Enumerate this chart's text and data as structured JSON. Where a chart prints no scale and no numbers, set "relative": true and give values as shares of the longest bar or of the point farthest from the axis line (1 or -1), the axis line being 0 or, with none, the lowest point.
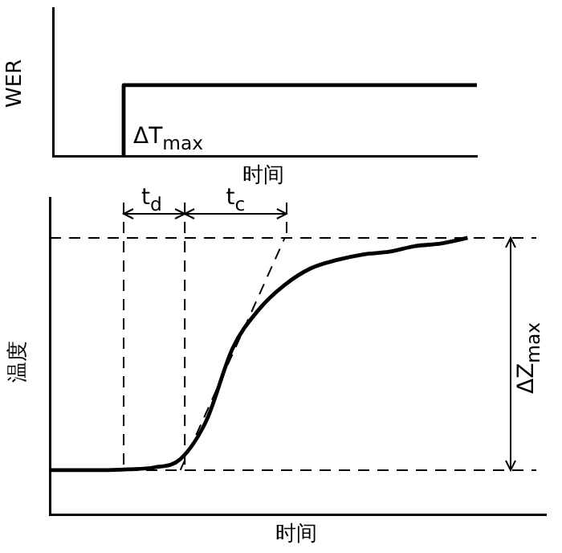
{
  "chart_data": [
    {
      "type": "step",
      "ylabel": "WER",
      "xlabel": "时间",
      "categories": [
        null,
        null,
        null,
        null,
        null,
        null,
        null,
        null,
        null,
        null,
        null,
        null,
        null
      ],
      "relative": true,
      "marker": "none",
      "series": [
        {
          "color": "#000000",
          "values": [
            null,
            null,
            0,
            1,
            1,
            1,
            1,
            1,
            1,
            1,
            1,
            1,
            1
          ]
        }
      ],
      "annotations": [
        "ΔT$_{max}$"
      ]
    },
    {
      "type": "line",
      "ylabel": "温度",
      "xlabel": "时间",
      "categories": [
        null,
        null,
        null,
        null,
        null,
        null,
        null,
        null,
        null,
        null,
        null,
        null,
        null,
        null,
        null,
        null,
        null,
        null,
        null,
        null
      ],
      "relative": true,
      "marker": "none",
      "series": [
        {
          "color": "#000000",
          "values": [
            0.16,
            0.16,
            0.16,
            0.163,
            0.17,
            0.2,
            0.34,
            0.6,
            0.74,
            0.83,
            0.89,
            0.92,
            0.94,
            0.95,
            0.97,
            0.98,
            1,
            null,
            null,
            null
          ]
        },
        {
          "color": "#000000",
          "line_style": "dashed",
          "values": [
            null,
            null,
            null,
            null,
            null,
            0.16,
            null,
            null,
            null,
            1,
            null,
            null,
            null,
            null,
            null,
            null,
            null,
            null,
            null,
            null
          ]
        }
      ],
      "ref_lines": [
        {
          "axis": "y",
          "value": 1,
          "line_style": "dashed"
        },
        {
          "axis": "y",
          "value": 0.16,
          "line_style": "dashed"
        }
      ],
      "annotations": [
        "t$_{d}$",
        "t$_{c}$",
        "ΔZ$_{max}$"
      ]
    }
  ]
}
